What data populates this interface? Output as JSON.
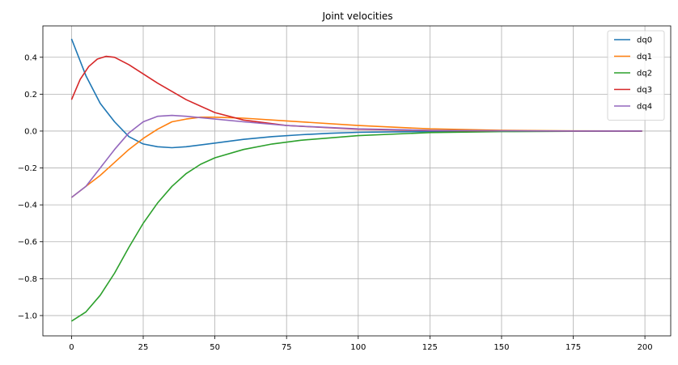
{
  "chart_data": {
    "type": "line",
    "title": "Joint velocities",
    "xlabel": "",
    "ylabel": "",
    "xlim": [
      -10,
      209
    ],
    "ylim": [
      -1.11,
      0.57
    ],
    "xticks": [
      0,
      25,
      50,
      75,
      100,
      125,
      150,
      175,
      200
    ],
    "yticks": [
      -1.0,
      -0.8,
      -0.6,
      -0.4,
      -0.2,
      0.0,
      0.2,
      0.4
    ],
    "ytick_labels": [
      "−1.0",
      "−0.8",
      "−0.6",
      "−0.4",
      "−0.2",
      "0.0",
      "0.2",
      "0.4"
    ],
    "grid": true,
    "legend_position": "top-right",
    "series": [
      {
        "name": "dq0",
        "color": "#1f77b4",
        "x": [
          0,
          5,
          10,
          15,
          20,
          25,
          30,
          35,
          40,
          50,
          60,
          70,
          80,
          90,
          100,
          125,
          150,
          175,
          199
        ],
        "y": [
          0.5,
          0.3,
          0.15,
          0.05,
          -0.03,
          -0.07,
          -0.085,
          -0.09,
          -0.085,
          -0.065,
          -0.045,
          -0.03,
          -0.02,
          -0.012,
          -0.007,
          -0.002,
          0.0,
          0.0,
          0.0
        ]
      },
      {
        "name": "dq1",
        "color": "#ff7f0e",
        "x": [
          0,
          5,
          10,
          15,
          20,
          25,
          30,
          35,
          40,
          45,
          50,
          60,
          75,
          100,
          125,
          150,
          175,
          199
        ],
        "y": [
          -0.36,
          -0.3,
          -0.24,
          -0.17,
          -0.1,
          -0.04,
          0.01,
          0.05,
          0.065,
          0.075,
          0.075,
          0.07,
          0.055,
          0.03,
          0.012,
          0.004,
          0.001,
          0.0
        ]
      },
      {
        "name": "dq2",
        "color": "#2ca02c",
        "x": [
          0,
          5,
          10,
          15,
          20,
          25,
          30,
          35,
          40,
          45,
          50,
          60,
          70,
          80,
          100,
          125,
          150,
          175,
          199
        ],
        "y": [
          -1.03,
          -0.98,
          -0.89,
          -0.77,
          -0.63,
          -0.5,
          -0.39,
          -0.3,
          -0.23,
          -0.18,
          -0.145,
          -0.1,
          -0.07,
          -0.05,
          -0.025,
          -0.008,
          -0.003,
          -0.001,
          0.0
        ]
      },
      {
        "name": "dq3",
        "color": "#d62728",
        "x": [
          0,
          3,
          6,
          9,
          12,
          15,
          20,
          25,
          30,
          40,
          50,
          60,
          75,
          100,
          125,
          150,
          175,
          199
        ],
        "y": [
          0.17,
          0.28,
          0.35,
          0.39,
          0.405,
          0.4,
          0.36,
          0.31,
          0.26,
          0.17,
          0.1,
          0.06,
          0.03,
          0.01,
          0.003,
          0.001,
          0.0,
          0.0
        ]
      },
      {
        "name": "dq4",
        "color": "#9467bd",
        "x": [
          0,
          5,
          10,
          15,
          20,
          25,
          30,
          35,
          40,
          50,
          60,
          75,
          100,
          125,
          150,
          175,
          199
        ],
        "y": [
          -0.36,
          -0.3,
          -0.2,
          -0.1,
          -0.01,
          0.05,
          0.08,
          0.085,
          0.08,
          0.065,
          0.05,
          0.03,
          0.012,
          0.004,
          0.001,
          0.0,
          0.0
        ]
      }
    ]
  }
}
